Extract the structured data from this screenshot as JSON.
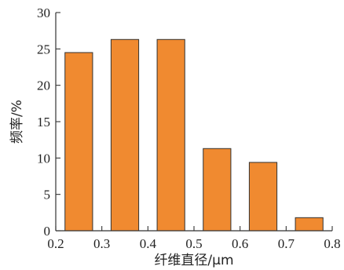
{
  "chart_data": {
    "type": "bar",
    "x_centers": [
      0.25,
      0.35,
      0.45,
      0.55,
      0.65,
      0.75
    ],
    "bar_width": 0.06,
    "values": [
      24.5,
      26.3,
      26.3,
      11.3,
      9.4,
      1.8
    ],
    "xlabel": "纤维直径/μm",
    "ylabel": "频率/%",
    "xlim": [
      0.2,
      0.8
    ],
    "ylim": [
      0,
      30
    ],
    "x_ticks": [
      0.2,
      0.3,
      0.4,
      0.5,
      0.6,
      0.7,
      0.8
    ],
    "x_tick_labels": [
      "0.2",
      "0.3",
      "0.4",
      "0.5",
      "0.6",
      "0.7",
      "0.8"
    ],
    "y_ticks": [
      0,
      5,
      10,
      15,
      20,
      25,
      30
    ],
    "y_tick_labels": [
      "0",
      "5",
      "10",
      "15",
      "20",
      "25",
      "30"
    ],
    "grid": false,
    "bar_color": "#f08a30",
    "edge_color": "#333333"
  }
}
